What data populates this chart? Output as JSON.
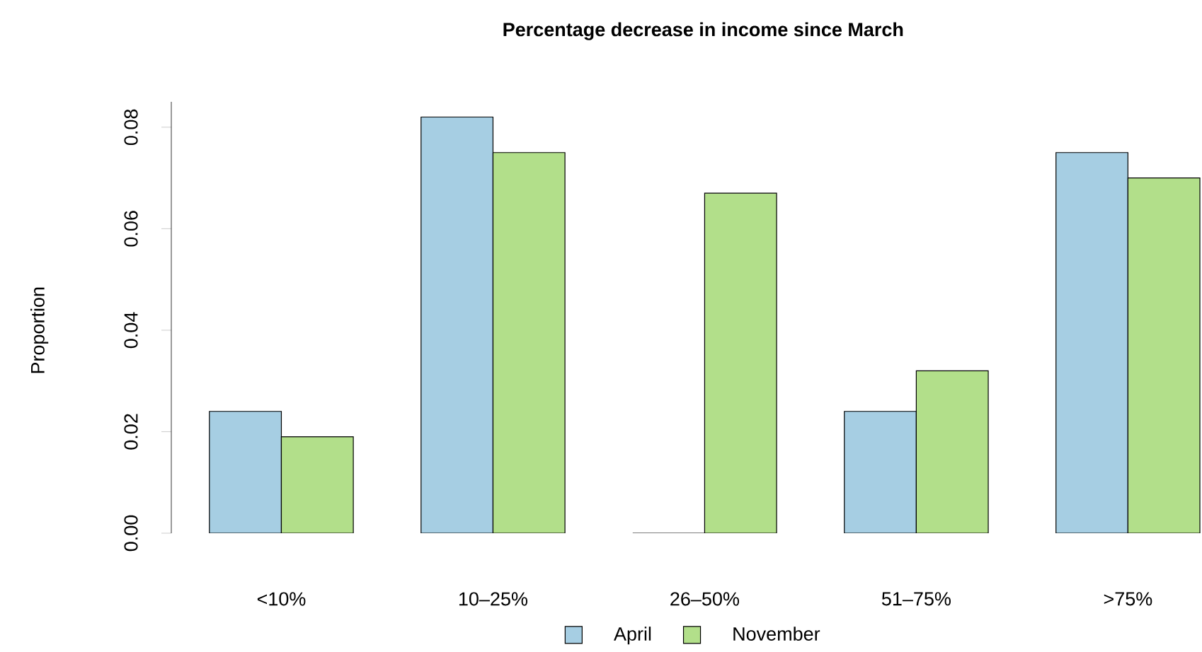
{
  "chart_data": {
    "type": "bar",
    "title": "Percentage decrease in income since March",
    "ylabel": "Proportion",
    "categories": [
      "<10%",
      "10–25%",
      "26–50%",
      "51–75%",
      ">75%"
    ],
    "series": [
      {
        "name": "April",
        "color": "#a6cee3",
        "values": [
          0.024,
          0.082,
          0,
          0.024,
          0.075
        ]
      },
      {
        "name": "November",
        "color": "#b2df8a",
        "values": [
          0.019,
          0.075,
          0.067,
          0.032,
          0.07
        ]
      }
    ],
    "ylim": [
      0,
      0.085
    ],
    "yticks": [
      {
        "value": 0,
        "label": "0.00"
      },
      {
        "value": 0.02,
        "label": "0.02"
      },
      {
        "value": 0.04,
        "label": "0.04"
      },
      {
        "value": 0.06,
        "label": "0.06"
      },
      {
        "value": 0.08,
        "label": "0.08"
      }
    ],
    "legend": "bottom"
  }
}
